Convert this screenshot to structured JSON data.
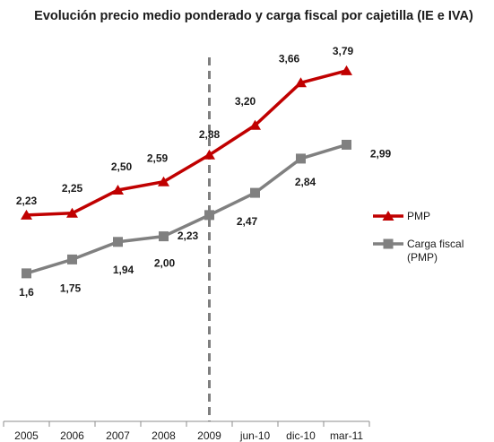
{
  "chart_data": {
    "type": "line",
    "title": "Evolución  precio medio ponderado y carga fiscal por cajetilla (IE e IVA)",
    "categories": [
      "2005",
      "2006",
      "2007",
      "2008",
      "2009",
      "jun-10",
      "dic-10",
      "mar-11"
    ],
    "series": [
      {
        "name": "PMP",
        "values": [
          2.23,
          2.25,
          2.5,
          2.59,
          2.88,
          3.2,
          3.66,
          3.79
        ],
        "labels": [
          "2,23",
          "2,25",
          "2,50",
          "2,59",
          "2,88",
          "3,20",
          "3,66",
          "3,79"
        ],
        "color": "#c00000",
        "marker": "triangle"
      },
      {
        "name": "Carga fiscal (PMP)",
        "name_lines": [
          "Carga fiscal",
          "(PMP)"
        ],
        "values": [
          1.6,
          1.75,
          1.94,
          2.0,
          2.23,
          2.47,
          2.84,
          2.99
        ],
        "labels": [
          "1,6",
          "1,75",
          "1,94",
          "2,00",
          "2,23",
          "2,47",
          "2,84",
          "2,99"
        ],
        "color": "#808080",
        "marker": "square"
      }
    ],
    "ylim": [
      0,
      4.2
    ],
    "grid": false,
    "legend_position": "right",
    "reference_line": {
      "at_category": "2009",
      "style": "dashed",
      "color": "#7f7f7f"
    }
  }
}
